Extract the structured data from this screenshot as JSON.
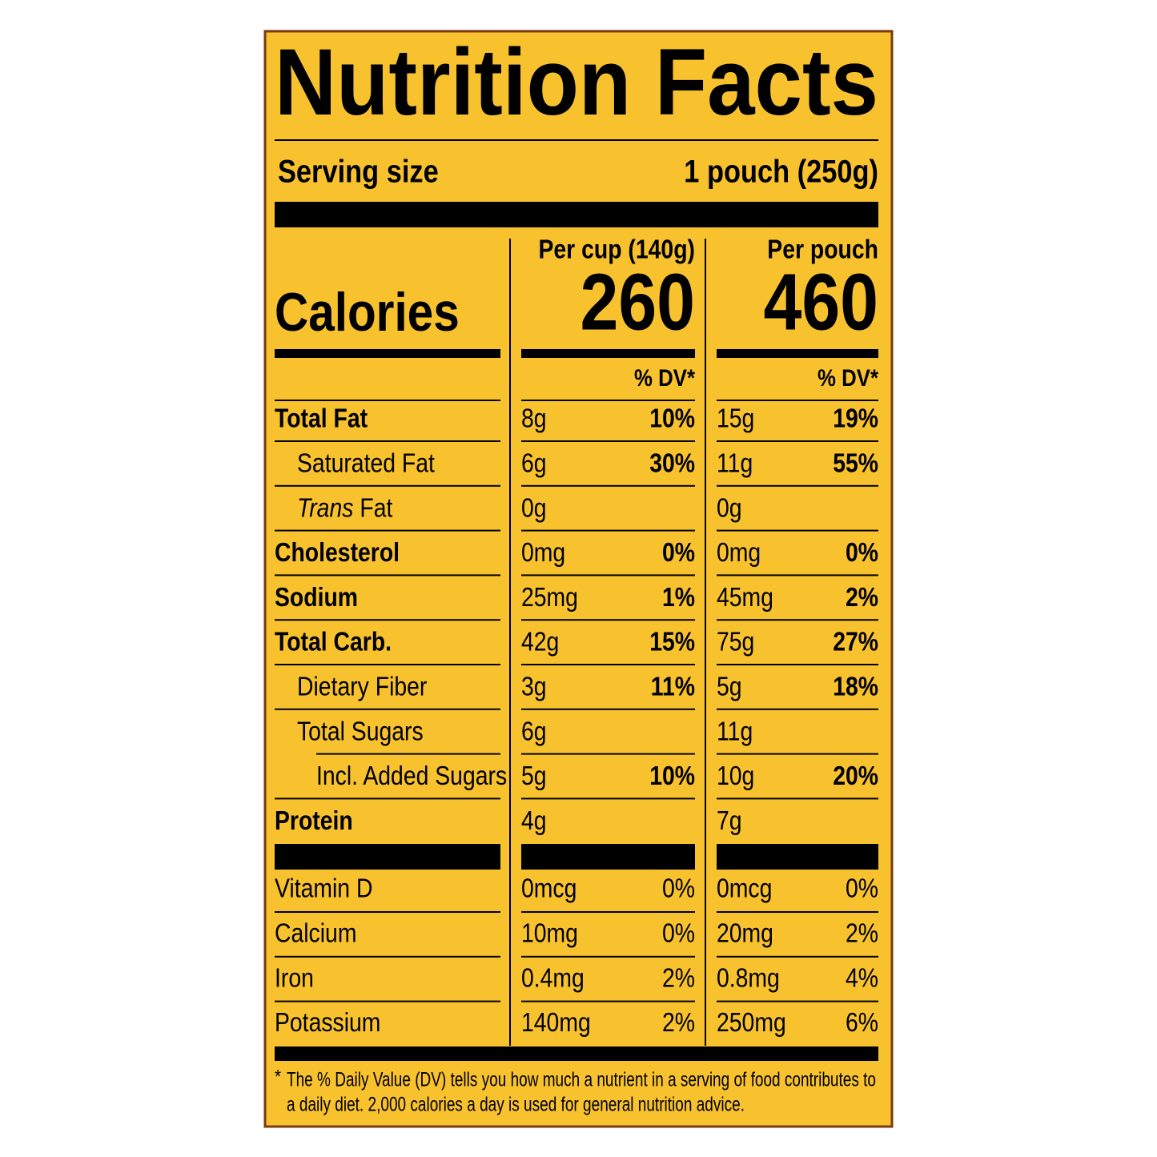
{
  "title": "Nutrition Facts",
  "serving": {
    "label": "Serving size",
    "value": "1 pouch (250g)"
  },
  "calories": {
    "label": "Calories",
    "columns": [
      {
        "header": "Per cup (140g)",
        "value": "260"
      },
      {
        "header": "Per pouch",
        "value": "460"
      }
    ]
  },
  "dv_header": [
    "% DV*",
    "% DV*"
  ],
  "nutrients": [
    {
      "name": "Total Fat",
      "per_cup": {
        "amount": "8g",
        "dv": "10%"
      },
      "per_pouch": {
        "amount": "15g",
        "dv": "19%"
      }
    },
    {
      "name": "Saturated Fat",
      "per_cup": {
        "amount": "6g",
        "dv": "30%"
      },
      "per_pouch": {
        "amount": "11g",
        "dv": "55%"
      }
    },
    {
      "name_italic": "Trans",
      "name": "Fat",
      "per_cup": {
        "amount": "0g"
      },
      "per_pouch": {
        "amount": "0g"
      }
    },
    {
      "name": "Cholesterol",
      "per_cup": {
        "amount": "0mg",
        "dv": "0%"
      },
      "per_pouch": {
        "amount": "0mg",
        "dv": "0%"
      }
    },
    {
      "name": "Sodium",
      "per_cup": {
        "amount": "25mg",
        "dv": "1%"
      },
      "per_pouch": {
        "amount": "45mg",
        "dv": "2%"
      }
    },
    {
      "name": "Total Carb.",
      "per_cup": {
        "amount": "42g",
        "dv": "15%"
      },
      "per_pouch": {
        "amount": "75g",
        "dv": "27%"
      }
    },
    {
      "name": "Dietary Fiber",
      "per_cup": {
        "amount": "3g",
        "dv": "11%"
      },
      "per_pouch": {
        "amount": "5g",
        "dv": "18%"
      }
    },
    {
      "name": "Total Sugars",
      "per_cup": {
        "amount": "6g"
      },
      "per_pouch": {
        "amount": "11g"
      }
    },
    {
      "name": "Incl. Added Sugars",
      "per_cup": {
        "amount": "5g",
        "dv": "10%"
      },
      "per_pouch": {
        "amount": "10g",
        "dv": "20%"
      }
    },
    {
      "name": "Protein",
      "per_cup": {
        "amount": "4g"
      },
      "per_pouch": {
        "amount": "7g"
      }
    }
  ],
  "vitamins": [
    {
      "name": "Vitamin D",
      "per_cup": {
        "amount": "0mcg",
        "dv": "0%"
      },
      "per_pouch": {
        "amount": "0mcg",
        "dv": "0%"
      }
    },
    {
      "name": "Calcium",
      "per_cup": {
        "amount": "10mg",
        "dv": "0%"
      },
      "per_pouch": {
        "amount": "20mg",
        "dv": "2%"
      }
    },
    {
      "name": "Iron",
      "per_cup": {
        "amount": "0.4mg",
        "dv": "2%"
      },
      "per_pouch": {
        "amount": "0.8mg",
        "dv": "4%"
      }
    },
    {
      "name": "Potassium",
      "per_cup": {
        "amount": "140mg",
        "dv": "2%"
      },
      "per_pouch": {
        "amount": "250mg",
        "dv": "6%"
      }
    }
  ],
  "footnote": {
    "mark": "*",
    "lines": [
      "The % Daily Value (DV) tells you how much a nutrient in a serving of food contributes to",
      "a daily diet. 2,000 calories a day is used for general nutrition advice."
    ]
  }
}
